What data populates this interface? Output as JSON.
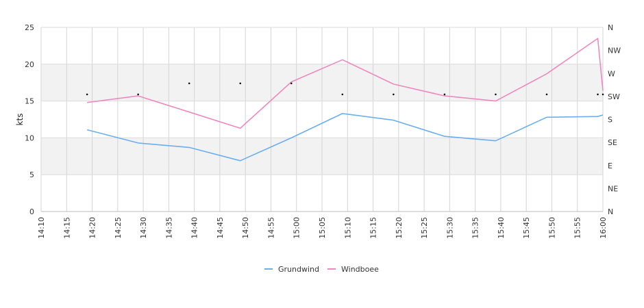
{
  "chart_data": {
    "type": "line",
    "title": "",
    "xlabel": "",
    "ylabel": "kts",
    "xlim": [
      "14:10",
      "16:00"
    ],
    "x_ticks": [
      "14:10",
      "14:15",
      "14:20",
      "14:25",
      "14:30",
      "14:35",
      "14:40",
      "14:45",
      "14:50",
      "14:55",
      "15:00",
      "15:05",
      "15:10",
      "15:15",
      "15:20",
      "15:25",
      "15:30",
      "15:35",
      "15:40",
      "15:45",
      "15:50",
      "15:55",
      "16:00"
    ],
    "ylim": [
      0,
      25
    ],
    "y_ticks": [
      0,
      5,
      10,
      15,
      20,
      25
    ],
    "y2_ticks": [
      "N",
      "NE",
      "E",
      "SE",
      "S",
      "SW",
      "W",
      "NW",
      "N"
    ],
    "grid": true,
    "banded_background": true,
    "legend_position": "bottom-center",
    "series": [
      {
        "name": "Grundwind",
        "color": "#6aaef0",
        "x": [
          "14:19",
          "14:29",
          "14:39",
          "14:49",
          "14:59",
          "15:09",
          "15:19",
          "15:29",
          "15:39",
          "15:49",
          "15:59",
          "16:00"
        ],
        "values": [
          11.1,
          9.3,
          8.7,
          6.9,
          10.0,
          13.3,
          12.4,
          10.2,
          9.6,
          12.8,
          12.9,
          13.1
        ]
      },
      {
        "name": "Windboee",
        "color": "#ee88c0",
        "x": [
          "14:19",
          "14:29",
          "14:39",
          "14:49",
          "14:59",
          "15:09",
          "15:19",
          "15:29",
          "15:39",
          "15:49",
          "15:59",
          "16:00"
        ],
        "values": [
          14.8,
          15.7,
          13.5,
          11.3,
          17.6,
          20.6,
          17.3,
          15.7,
          15.0,
          18.7,
          23.5,
          16.4
        ]
      }
    ],
    "direction": {
      "color": "#111111",
      "x": [
        "14:19",
        "14:29",
        "14:39",
        "14:49",
        "14:59",
        "15:09",
        "15:19",
        "15:29",
        "15:39",
        "15:49",
        "15:59",
        "16:00"
      ],
      "values": [
        15.9,
        15.9,
        17.4,
        17.4,
        17.4,
        15.9,
        15.9,
        15.9,
        15.9,
        15.9,
        15.9,
        15.9
      ]
    }
  }
}
